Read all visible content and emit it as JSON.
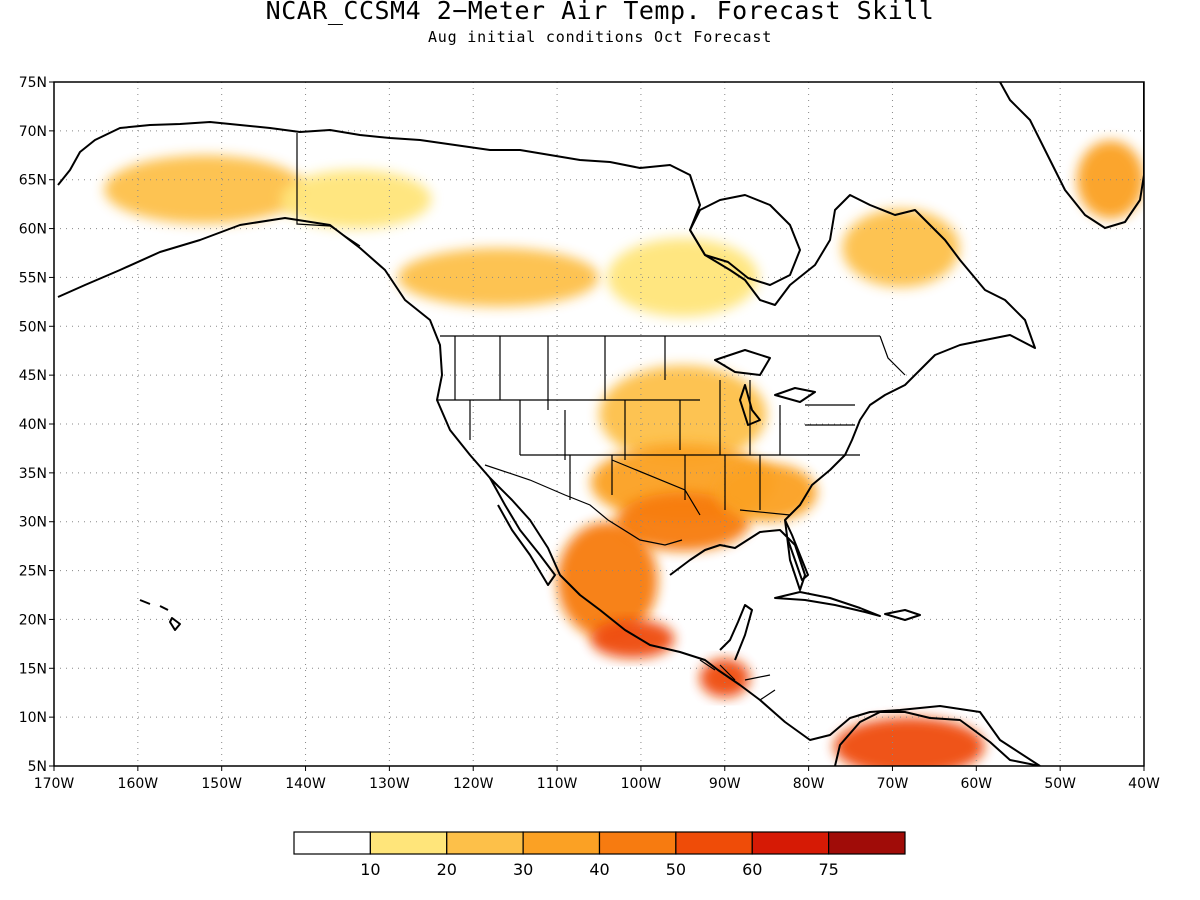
{
  "title": "NCAR_CCSM4 2−Meter Air Temp. Forecast Skill",
  "subtitle": "Aug initial conditions  Oct Forecast",
  "map": {
    "lon_range": [
      -170,
      -40
    ],
    "lat_range": [
      5,
      75
    ],
    "lat_labels": [
      "75N",
      "70N",
      "65N",
      "60N",
      "55N",
      "50N",
      "45N",
      "40N",
      "35N",
      "30N",
      "25N",
      "20N",
      "15N",
      "10N",
      "5N"
    ],
    "lon_labels": [
      "170W",
      "160W",
      "150W",
      "140W",
      "130W",
      "120W",
      "110W",
      "100W",
      "90W",
      "80W",
      "70W",
      "60W",
      "50W",
      "40W"
    ],
    "grid": "dotted"
  },
  "colorbar": {
    "colors": [
      "#ffffff",
      "#ffe57a",
      "#fdc049",
      "#fba124",
      "#f77b10",
      "#ef4c08",
      "#d61a05",
      "#a00c08"
    ],
    "labels": [
      "10",
      "20",
      "30",
      "40",
      "50",
      "60",
      "75"
    ]
  },
  "skill_regions": [
    {
      "name": "alaska-interior",
      "lon": -152,
      "lat": 64,
      "rx": 12,
      "ry": 3.5,
      "level": 2
    },
    {
      "name": "yukon-nwt",
      "lon": -134,
      "lat": 63,
      "rx": 9,
      "ry": 3,
      "level": 1
    },
    {
      "name": "canadian-prairie",
      "lon": -117,
      "lat": 55,
      "rx": 12,
      "ry": 3,
      "level": 2
    },
    {
      "name": "hudson-west",
      "lon": -95,
      "lat": 55,
      "rx": 9,
      "ry": 4,
      "level": 1
    },
    {
      "name": "labrador",
      "lon": -69,
      "lat": 58,
      "rx": 7,
      "ry": 4,
      "level": 2
    },
    {
      "name": "greenland-south",
      "lon": -44,
      "lat": 65,
      "rx": 4,
      "ry": 4,
      "level": 3
    },
    {
      "name": "central-plains",
      "lon": -95,
      "lat": 41,
      "rx": 10,
      "ry": 5,
      "level": 2
    },
    {
      "name": "southern-plains",
      "lon": -95,
      "lat": 34,
      "rx": 11,
      "ry": 4,
      "level": 3
    },
    {
      "name": "texas-gulf",
      "lon": -95,
      "lat": 30,
      "rx": 8,
      "ry": 3,
      "level": 4
    },
    {
      "name": "southeast",
      "lon": -85,
      "lat": 33,
      "rx": 6,
      "ry": 3,
      "level": 3
    },
    {
      "name": "mexico",
      "lon": -104,
      "lat": 24,
      "rx": 6,
      "ry": 6,
      "level": 4
    },
    {
      "name": "mexico-south",
      "lon": -101,
      "lat": 18,
      "rx": 5,
      "ry": 2,
      "level": 5
    },
    {
      "name": "central-america",
      "lon": -90,
      "lat": 14,
      "rx": 3,
      "ry": 2,
      "level": 5
    },
    {
      "name": "venezuela",
      "lon": -68,
      "lat": 7,
      "rx": 9,
      "ry": 3,
      "level": 5
    }
  ]
}
